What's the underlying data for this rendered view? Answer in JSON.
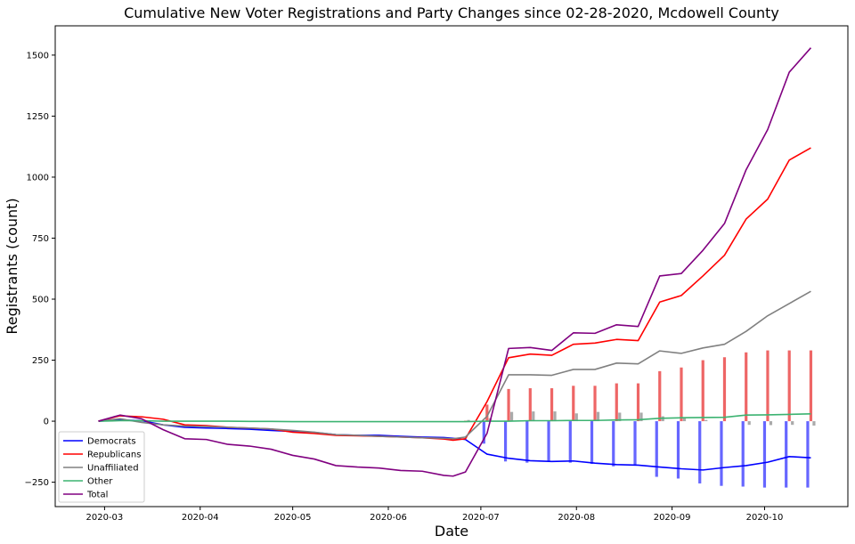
{
  "chart_data": {
    "type": "line",
    "title": "Cumulative New Voter Registrations and Party Changes since 02-28-2020, Mcdowell County",
    "xlabel": "Date",
    "ylabel": "Registrants (count)",
    "xlim": [
      "2020-02-14",
      "2020-10-28"
    ],
    "ylim": [
      -350,
      1620
    ],
    "x_ticks": [
      "2020-03-01",
      "2020-04-01",
      "2020-05-01",
      "2020-06-01",
      "2020-07-01",
      "2020-08-01",
      "2020-09-01",
      "2020-10-01"
    ],
    "x_tick_labels": [
      "2020-03",
      "2020-04",
      "2020-05",
      "2020-06",
      "2020-07",
      "2020-08",
      "2020-09",
      "2020-10"
    ],
    "y_ticks": [
      -250,
      0,
      250,
      500,
      750,
      1000,
      1250,
      1500
    ],
    "y_tick_labels": [
      "−250",
      "0",
      "250",
      "500",
      "750",
      "1000",
      "1250",
      "1500"
    ],
    "grid": false,
    "legend_position": "bottom-left",
    "x": [
      "2020-02-28",
      "2020-03-06",
      "2020-03-13",
      "2020-03-20",
      "2020-03-27",
      "2020-04-03",
      "2020-04-10",
      "2020-04-17",
      "2020-04-24",
      "2020-05-01",
      "2020-05-08",
      "2020-05-15",
      "2020-05-22",
      "2020-05-29",
      "2020-06-05",
      "2020-06-12",
      "2020-06-19",
      "2020-06-22",
      "2020-06-26",
      "2020-07-03",
      "2020-07-10",
      "2020-07-17",
      "2020-07-24",
      "2020-07-31",
      "2020-08-07",
      "2020-08-14",
      "2020-08-21",
      "2020-08-28",
      "2020-09-04",
      "2020-09-11",
      "2020-09-18",
      "2020-09-25",
      "2020-10-02",
      "2020-10-09",
      "2020-10-16"
    ],
    "series": [
      {
        "name": "Democrats",
        "color": "#0000ff",
        "values": [
          0,
          5,
          2,
          -15,
          -25,
          -28,
          -30,
          -33,
          -38,
          -42,
          -46,
          -55,
          -58,
          -58,
          -62,
          -65,
          -67,
          -70,
          -75,
          -135,
          -152,
          -162,
          -165,
          -163,
          -172,
          -178,
          -180,
          -188,
          -195,
          -200,
          -190,
          -182,
          -168,
          -145,
          -150
        ]
      },
      {
        "name": "Republicans",
        "color": "#ff0000",
        "values": [
          0,
          22,
          18,
          8,
          -15,
          -18,
          -25,
          -28,
          -32,
          -45,
          -50,
          -58,
          -60,
          -62,
          -65,
          -68,
          -73,
          -78,
          -72,
          80,
          260,
          275,
          270,
          315,
          320,
          335,
          330,
          488,
          515,
          595,
          680,
          828,
          910,
          1070,
          1120
        ]
      },
      {
        "name": "Unaffiliated",
        "color": "#808080",
        "values": [
          0,
          10,
          -5,
          -15,
          -20,
          -22,
          -25,
          -28,
          -32,
          -38,
          -45,
          -55,
          -58,
          -62,
          -65,
          -68,
          -70,
          -72,
          -65,
          20,
          190,
          190,
          188,
          212,
          212,
          238,
          235,
          288,
          278,
          300,
          315,
          368,
          432,
          482,
          532
        ]
      },
      {
        "name": "Other",
        "color": "#3cb371",
        "values": [
          0,
          2,
          2,
          0,
          0,
          0,
          0,
          -1,
          -1,
          -2,
          -2,
          -2,
          -2,
          -2,
          -2,
          -2,
          -2,
          -2,
          -2,
          0,
          0,
          2,
          2,
          3,
          3,
          5,
          6,
          12,
          14,
          15,
          16,
          25,
          26,
          28,
          30
        ]
      },
      {
        "name": "Total",
        "color": "#800080",
        "values": [
          0,
          25,
          10,
          -35,
          -72,
          -75,
          -95,
          -102,
          -115,
          -140,
          -155,
          -182,
          -188,
          -192,
          -202,
          -205,
          -222,
          -225,
          -208,
          -50,
          298,
          302,
          290,
          362,
          360,
          395,
          388,
          595,
          605,
          700,
          810,
          1030,
          1195,
          1430,
          1530
        ]
      }
    ],
    "bars": {
      "x": [
        "2020-06-26",
        "2020-07-03",
        "2020-07-10",
        "2020-07-17",
        "2020-07-24",
        "2020-07-31",
        "2020-08-07",
        "2020-08-14",
        "2020-08-21",
        "2020-08-28",
        "2020-09-04",
        "2020-09-11",
        "2020-09-18",
        "2020-09-25",
        "2020-10-02",
        "2020-10-09",
        "2020-10-16"
      ],
      "groups": [
        {
          "name": "Democrats",
          "color": "#6666ff",
          "values": [
            0,
            -92,
            -165,
            -170,
            -165,
            -170,
            -175,
            -185,
            -182,
            -228,
            -235,
            -255,
            -265,
            -268,
            -272,
            -272,
            -272
          ]
        },
        {
          "name": "Republicans",
          "color": "#ee6666",
          "values": [
            2,
            68,
            132,
            135,
            135,
            145,
            145,
            155,
            155,
            205,
            220,
            250,
            262,
            282,
            290,
            290,
            290
          ]
        },
        {
          "name": "Unaffiliated",
          "color": "#aaaaaa",
          "values": [
            5,
            12,
            38,
            40,
            40,
            32,
            38,
            35,
            35,
            20,
            14,
            5,
            0,
            -15,
            -16,
            -15,
            -18
          ]
        }
      ]
    }
  },
  "legend": {
    "items": [
      {
        "label": "Democrats",
        "color": "#0000ff"
      },
      {
        "label": "Republicans",
        "color": "#ff0000"
      },
      {
        "label": "Unaffiliated",
        "color": "#808080"
      },
      {
        "label": "Other",
        "color": "#3cb371"
      },
      {
        "label": "Total",
        "color": "#800080"
      }
    ]
  }
}
